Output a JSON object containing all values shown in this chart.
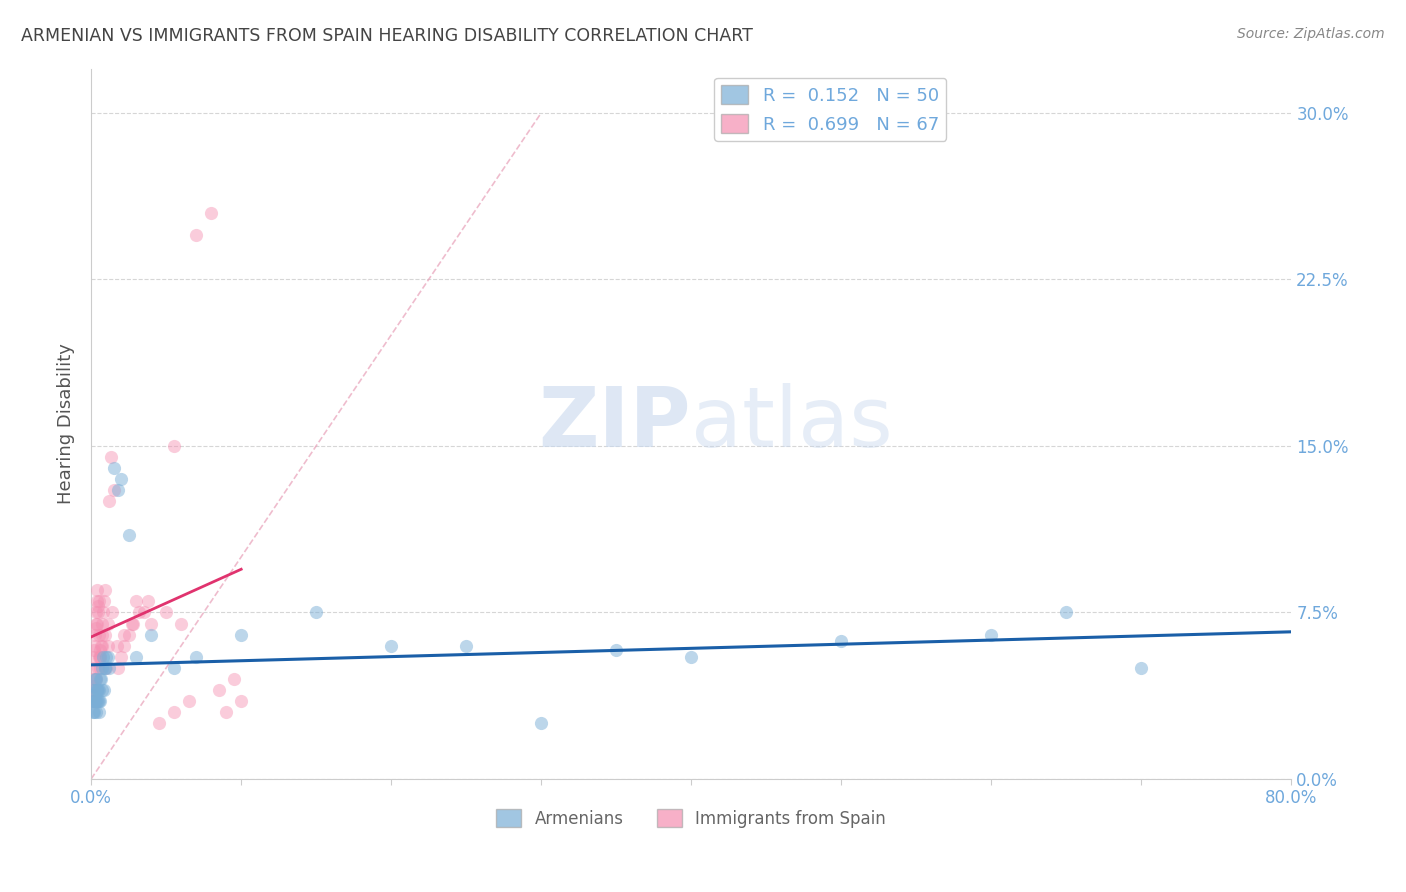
{
  "title": "ARMENIAN VS IMMIGRANTS FROM SPAIN HEARING DISABILITY CORRELATION CHART",
  "source": "Source: ZipAtlas.com",
  "ylabel": "Hearing Disability",
  "ytick_values": [
    0.0,
    7.5,
    15.0,
    22.5,
    30.0
  ],
  "xlim": [
    0.0,
    80.0
  ],
  "ylim": [
    0.0,
    32.0
  ],
  "legend_blue_r": "0.152",
  "legend_blue_n": "50",
  "legend_pink_r": "0.699",
  "legend_pink_n": "67",
  "blue_color": "#7aaed6",
  "pink_color": "#f48fb1",
  "trendline_blue_color": "#1a5fa8",
  "trendline_pink_color": "#e0336e",
  "trendline_diag_color": "#cccccc",
  "background_color": "#ffffff",
  "grid_color": "#cccccc",
  "axis_label_color": "#6fa8dc",
  "title_color": "#444444",
  "armenians_x": [
    0.1,
    0.12,
    0.15,
    0.18,
    0.2,
    0.22,
    0.25,
    0.28,
    0.3,
    0.32,
    0.35,
    0.38,
    0.4,
    0.42,
    0.45,
    0.48,
    0.5,
    0.52,
    0.55,
    0.58,
    0.6,
    0.65,
    0.7,
    0.75,
    0.8,
    0.85,
    0.9,
    0.95,
    1.0,
    1.1,
    1.2,
    1.5,
    1.8,
    2.0,
    2.5,
    3.0,
    4.0,
    5.5,
    7.0,
    10.0,
    15.0,
    20.0,
    25.0,
    30.0,
    35.0,
    40.0,
    50.0,
    60.0,
    65.0,
    70.0
  ],
  "armenians_y": [
    3.5,
    3.0,
    4.0,
    3.5,
    4.0,
    3.0,
    4.5,
    3.5,
    4.5,
    3.0,
    3.5,
    4.0,
    3.5,
    4.0,
    3.5,
    4.0,
    3.5,
    3.0,
    4.0,
    4.5,
    3.5,
    4.5,
    5.0,
    4.0,
    5.5,
    4.0,
    5.0,
    5.0,
    5.5,
    5.5,
    5.0,
    14.0,
    13.0,
    13.5,
    11.0,
    5.5,
    6.5,
    5.0,
    5.5,
    6.5,
    7.5,
    6.0,
    6.0,
    2.5,
    5.8,
    5.5,
    6.2,
    6.5,
    7.5,
    5.0
  ],
  "spain_x": [
    0.05,
    0.08,
    0.1,
    0.12,
    0.15,
    0.18,
    0.2,
    0.22,
    0.25,
    0.28,
    0.3,
    0.32,
    0.35,
    0.38,
    0.4,
    0.42,
    0.45,
    0.48,
    0.5,
    0.52,
    0.55,
    0.58,
    0.6,
    0.62,
    0.65,
    0.7,
    0.75,
    0.8,
    0.85,
    0.9,
    1.0,
    1.1,
    1.2,
    1.3,
    1.5,
    1.8,
    2.0,
    2.2,
    2.5,
    2.8,
    3.0,
    3.5,
    4.0,
    5.0,
    5.5,
    6.0,
    7.0,
    8.0,
    9.0,
    10.0,
    0.32,
    0.45,
    0.6,
    0.75,
    0.9,
    1.1,
    1.4,
    1.7,
    2.2,
    2.7,
    3.2,
    3.8,
    4.5,
    5.5,
    6.5,
    8.5,
    9.5
  ],
  "spain_y": [
    3.5,
    3.8,
    4.0,
    4.2,
    4.5,
    5.0,
    5.5,
    5.8,
    6.0,
    6.5,
    6.8,
    7.0,
    7.5,
    8.0,
    8.5,
    7.0,
    7.5,
    7.8,
    8.0,
    6.5,
    5.5,
    5.0,
    5.5,
    5.8,
    6.0,
    6.5,
    7.0,
    7.5,
    8.0,
    8.5,
    5.0,
    6.0,
    12.5,
    14.5,
    13.0,
    5.0,
    5.5,
    6.0,
    6.5,
    7.0,
    8.0,
    7.5,
    7.0,
    7.5,
    15.0,
    7.0,
    24.5,
    25.5,
    3.0,
    3.5,
    4.5,
    5.0,
    5.5,
    6.0,
    6.5,
    7.0,
    7.5,
    6.0,
    6.5,
    7.0,
    7.5,
    8.0,
    2.5,
    3.0,
    3.5,
    4.0,
    4.5
  ]
}
